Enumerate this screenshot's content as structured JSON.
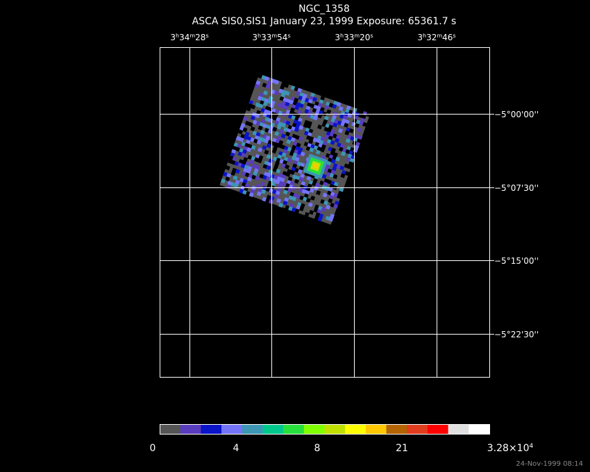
{
  "title": "NGC_1358",
  "subtitle": "ASCA SIS0,SIS1 January 23, 1999 Exposure: 65361.7 s",
  "ra_labels": [
    [
      "3",
      "h",
      "34",
      "m",
      "28",
      "s"
    ],
    [
      "3",
      "h",
      "33",
      "m",
      "54",
      "s"
    ],
    [
      "3",
      "h",
      "33",
      "m",
      "20",
      "s"
    ],
    [
      "3",
      "h",
      "32",
      "m",
      "46",
      "s"
    ]
  ],
  "dec_labels": [
    "−5°00'00''",
    "−5°07'30''",
    "−5°15'00''",
    "−5°22'30''"
  ],
  "colorbar": {
    "colors": [
      "#555555",
      "#5a3cbe",
      "#0a14c8",
      "#7474f8",
      "#3c96b4",
      "#00c88c",
      "#28e03c",
      "#80ff00",
      "#c0e000",
      "#ffff00",
      "#ffc800",
      "#b46400",
      "#e03c1e",
      "#ff0000",
      "#e0e0e0",
      "#ffffff"
    ],
    "labels": [
      "0",
      "4",
      "8",
      "21"
    ],
    "max_label": [
      "3.28×10",
      "4"
    ]
  },
  "timestamp": "24-Nov-1999 08:14"
}
